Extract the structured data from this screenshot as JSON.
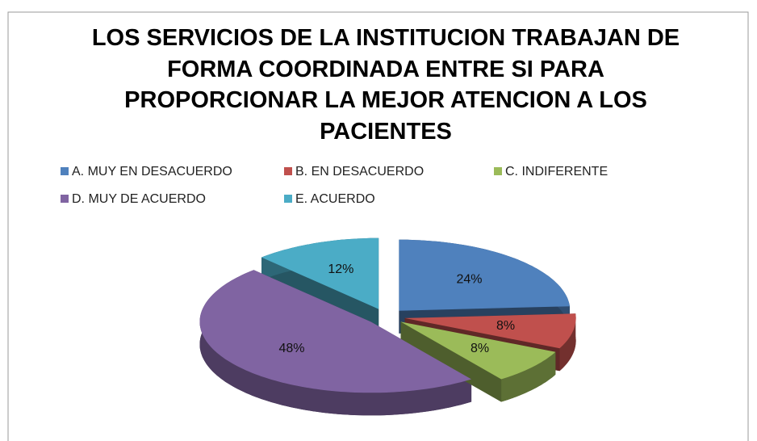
{
  "chart_data": {
    "type": "pie",
    "title": "LOS SERVICIOS DE LA INSTITUCION TRABAJAN DE FORMA COORDINADA ENTRE SI PARA PROPORCIONAR LA MEJOR ATENCION A LOS PACIENTES",
    "categories": [
      "A. MUY EN DESACUERDO",
      "B. EN DESACUERDO",
      "C. INDIFERENTE",
      "D. MUY DE ACUERDO",
      "E. ACUERDO"
    ],
    "values": [
      24,
      8,
      8,
      48,
      12
    ],
    "value_labels": [
      "24%",
      "8%",
      "8%",
      "48%",
      "12%"
    ],
    "colors": [
      "#4f81bd",
      "#c0504d",
      "#9bbb59",
      "#8064a2",
      "#4bacc6"
    ],
    "legend": "top"
  }
}
